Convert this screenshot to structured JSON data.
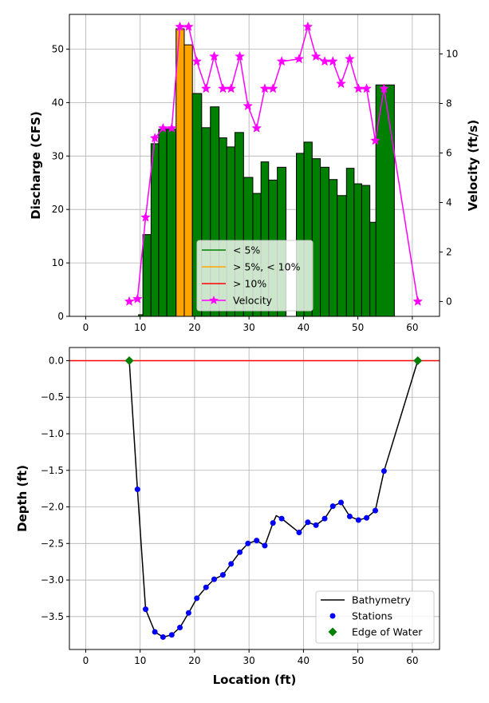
{
  "chart_data": [
    {
      "type": "bar",
      "xlabel": "",
      "ylabel": "Discharge (CFS)",
      "y2label": "Velocity (ft/s)",
      "xlim": [
        -3,
        65
      ],
      "ylim": [
        0,
        56.5
      ],
      "y2lim": [
        -0.6,
        11.6
      ],
      "xticks": [
        0,
        10,
        20,
        30,
        40,
        50,
        60
      ],
      "yticks": [
        0,
        10,
        20,
        30,
        40,
        50
      ],
      "y2ticks": [
        0,
        2,
        4,
        6,
        8,
        10
      ],
      "grid": true,
      "legend_position": "lower-center",
      "legend": [
        {
          "label": "< 5%",
          "color": "#008000",
          "kind": "line"
        },
        {
          "label": "> 5%, < 10%",
          "color": "#ffa500",
          "kind": "line"
        },
        {
          "label": "> 10%",
          "color": "#ff0000",
          "kind": "line"
        },
        {
          "label": "Velocity",
          "color": "#ff00ff",
          "kind": "line-star"
        }
      ],
      "bars": [
        {
          "x0": 9.7,
          "x1": 10.5,
          "value": 0.3,
          "color": "#008000"
        },
        {
          "x0": 10.5,
          "x1": 12.0,
          "value": 15.3,
          "color": "#008000"
        },
        {
          "x0": 12.0,
          "x1": 13.4,
          "value": 32.3,
          "color": "#008000"
        },
        {
          "x0": 13.4,
          "x1": 14.9,
          "value": 35.0,
          "color": "#008000"
        },
        {
          "x0": 14.9,
          "x1": 16.6,
          "value": 35.0,
          "color": "#008000"
        },
        {
          "x0": 16.6,
          "x1": 18.1,
          "value": 53.8,
          "color": "#ffa500"
        },
        {
          "x0": 18.1,
          "x1": 19.6,
          "value": 50.8,
          "color": "#ffa500"
        },
        {
          "x0": 19.6,
          "x1": 21.3,
          "value": 41.7,
          "color": "#008000"
        },
        {
          "x0": 21.3,
          "x1": 22.9,
          "value": 35.3,
          "color": "#008000"
        },
        {
          "x0": 22.9,
          "x1": 24.5,
          "value": 39.2,
          "color": "#008000"
        },
        {
          "x0": 24.5,
          "x1": 25.9,
          "value": 33.4,
          "color": "#008000"
        },
        {
          "x0": 25.9,
          "x1": 27.4,
          "value": 31.7,
          "color": "#008000"
        },
        {
          "x0": 27.4,
          "x1": 29.0,
          "value": 34.4,
          "color": "#008000"
        },
        {
          "x0": 29.0,
          "x1": 30.7,
          "value": 26.0,
          "color": "#008000"
        },
        {
          "x0": 30.7,
          "x1": 32.2,
          "value": 23.0,
          "color": "#008000"
        },
        {
          "x0": 32.2,
          "x1": 33.6,
          "value": 28.9,
          "color": "#008000"
        },
        {
          "x0": 33.6,
          "x1": 35.2,
          "value": 25.5,
          "color": "#008000"
        },
        {
          "x0": 35.2,
          "x1": 36.8,
          "value": 27.9,
          "color": "#008000"
        },
        {
          "x0": 38.7,
          "x1": 40.1,
          "value": 30.5,
          "color": "#008000"
        },
        {
          "x0": 40.1,
          "x1": 41.6,
          "value": 32.6,
          "color": "#008000"
        },
        {
          "x0": 41.6,
          "x1": 43.1,
          "value": 29.5,
          "color": "#008000"
        },
        {
          "x0": 43.1,
          "x1": 44.7,
          "value": 27.9,
          "color": "#008000"
        },
        {
          "x0": 44.7,
          "x1": 46.2,
          "value": 25.6,
          "color": "#008000"
        },
        {
          "x0": 46.2,
          "x1": 47.9,
          "value": 22.6,
          "color": "#008000"
        },
        {
          "x0": 47.9,
          "x1": 49.3,
          "value": 27.7,
          "color": "#008000"
        },
        {
          "x0": 49.3,
          "x1": 50.7,
          "value": 24.8,
          "color": "#008000"
        },
        {
          "x0": 50.7,
          "x1": 52.2,
          "value": 24.5,
          "color": "#008000"
        },
        {
          "x0": 52.2,
          "x1": 53.6,
          "value": 17.6,
          "color": "#008000"
        },
        {
          "x0": 53.3,
          "x1": 56.7,
          "value": 43.3,
          "color": "#008000"
        }
      ],
      "velocity": {
        "name": "Velocity",
        "color": "#ff00ff",
        "x": [
          8.0,
          9.5,
          11.0,
          12.7,
          14.2,
          15.8,
          17.3,
          18.9,
          20.4,
          22.1,
          23.6,
          25.2,
          26.7,
          28.3,
          29.8,
          31.4,
          32.9,
          34.4,
          36.0,
          39.2,
          40.8,
          42.3,
          43.9,
          45.4,
          46.9,
          48.5,
          50.1,
          51.6,
          53.2,
          54.8,
          61.0
        ],
        "y": [
          0.0,
          0.1,
          3.4,
          6.6,
          7.0,
          7.0,
          11.1,
          11.1,
          9.7,
          8.6,
          9.9,
          8.6,
          8.6,
          9.9,
          7.9,
          7.0,
          8.6,
          8.6,
          9.7,
          9.8,
          11.1,
          9.9,
          9.7,
          9.7,
          8.8,
          9.8,
          8.6,
          8.6,
          6.5,
          8.6,
          0.0
        ]
      }
    },
    {
      "type": "line",
      "xlabel": "Location  (ft)",
      "ylabel": "Depth  (ft)",
      "xlim": [
        -3,
        65
      ],
      "ylim": [
        -3.95,
        0.18
      ],
      "xticks": [
        0,
        10,
        20,
        30,
        40,
        50,
        60
      ],
      "yticks": [
        0.0,
        -0.5,
        -1.0,
        -1.5,
        -2.0,
        -2.5,
        -3.0,
        -3.5
      ],
      "ytick_labels": [
        "0.0",
        "−0.5",
        "−1.0",
        "−1.5",
        "−2.0",
        "−2.5",
        "−3.0",
        "−3.5"
      ],
      "grid": true,
      "legend_position": "lower-right",
      "water_surface": {
        "y": 0.0,
        "color": "#ff0000"
      },
      "legend": [
        {
          "label": "Bathymetry",
          "color": "#000000",
          "kind": "line"
        },
        {
          "label": "Stations",
          "color": "#0000ff",
          "kind": "dot"
        },
        {
          "label": "Edge of Water",
          "color": "#008000",
          "kind": "diamond"
        }
      ],
      "bathymetry": {
        "name": "Bathymetry",
        "color": "#000000",
        "x": [
          8.0,
          9.5,
          11.0,
          12.7,
          14.2,
          15.8,
          17.3,
          18.9,
          20.4,
          22.1,
          23.6,
          25.2,
          26.7,
          28.3,
          29.8,
          31.4,
          32.9,
          34.4,
          35.0,
          36.0,
          39.2,
          40.8,
          42.3,
          43.9,
          45.4,
          46.9,
          48.5,
          50.1,
          51.6,
          53.2,
          54.8,
          61.0
        ],
        "y": [
          0.0,
          -1.76,
          -3.4,
          -3.71,
          -3.78,
          -3.75,
          -3.65,
          -3.45,
          -3.25,
          -3.1,
          -2.99,
          -2.93,
          -2.78,
          -2.62,
          -2.5,
          -2.46,
          -2.53,
          -2.22,
          -2.12,
          -2.16,
          -2.35,
          -2.21,
          -2.25,
          -2.16,
          -1.99,
          -1.94,
          -2.13,
          -2.18,
          -2.15,
          -2.05,
          -1.51,
          0.0
        ]
      },
      "stations": {
        "name": "Stations",
        "color": "#0000ff",
        "x": [
          9.5,
          11.0,
          12.7,
          14.2,
          15.8,
          17.3,
          18.9,
          20.4,
          22.1,
          23.6,
          25.2,
          26.7,
          28.3,
          29.8,
          31.4,
          32.9,
          34.4,
          36.0,
          39.2,
          40.8,
          42.3,
          43.9,
          45.4,
          46.9,
          48.5,
          50.1,
          51.6,
          53.2,
          54.8
        ],
        "y": [
          -1.76,
          -3.4,
          -3.71,
          -3.78,
          -3.75,
          -3.65,
          -3.45,
          -3.25,
          -3.1,
          -2.99,
          -2.93,
          -2.78,
          -2.62,
          -2.5,
          -2.46,
          -2.53,
          -2.22,
          -2.16,
          -2.35,
          -2.21,
          -2.25,
          -2.16,
          -1.99,
          -1.94,
          -2.13,
          -2.18,
          -2.15,
          -2.05,
          -1.51
        ]
      },
      "edge_of_water": {
        "name": "Edge of Water",
        "color": "#008000",
        "x": [
          8.0,
          61.0
        ],
        "y": [
          0.0,
          0.0
        ]
      }
    }
  ]
}
